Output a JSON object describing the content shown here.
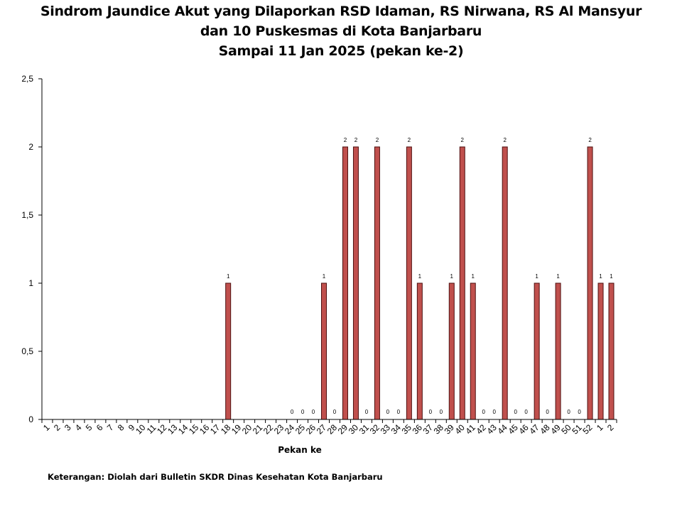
{
  "title_lines": [
    "Sindrom Jaundice Akut yang Dilaporkan RSD Idaman, RS Nirwana, RS Al Mansyur",
    "dan 10 Puskesmas di Kota Banjarbaru",
    "Sampai 11 Jan 2025 (pekan ke-2)"
  ],
  "footnote": "Keterangan: Diolah dari Bulletin SKDR Dinas Kesehatan Kota Banjarbaru",
  "chart_data": {
    "type": "bar",
    "xlabel": "Pekan ke",
    "ylabel": "",
    "ylim": [
      0,
      2.5
    ],
    "yticks": [
      "0",
      "0,5",
      "1",
      "1,5",
      "2",
      "2,5"
    ],
    "bar_color": "#c0504d",
    "categories": [
      "1",
      "2",
      "3",
      "4",
      "5",
      "6",
      "7",
      "8",
      "9",
      "10",
      "11",
      "12",
      "13",
      "14",
      "15",
      "16",
      "17",
      "18",
      "19",
      "20",
      "21",
      "22",
      "23",
      "24",
      "25",
      "26",
      "27",
      "28",
      "29",
      "30",
      "31",
      "32",
      "33",
      "34",
      "35",
      "36",
      "37",
      "38",
      "39",
      "40",
      "41",
      "42",
      "43",
      "44",
      "45",
      "46",
      "47",
      "48",
      "49",
      "50",
      "51",
      "52",
      "1",
      "2"
    ],
    "values": [
      null,
      null,
      null,
      null,
      null,
      null,
      null,
      null,
      null,
      null,
      null,
      null,
      null,
      null,
      null,
      null,
      null,
      1,
      null,
      null,
      null,
      null,
      null,
      0,
      0,
      0,
      1,
      0,
      2,
      2,
      0,
      2,
      0,
      0,
      2,
      1,
      0,
      0,
      1,
      2,
      1,
      0,
      0,
      2,
      0,
      0,
      1,
      0,
      1,
      0,
      0,
      2,
      1,
      1
    ]
  }
}
